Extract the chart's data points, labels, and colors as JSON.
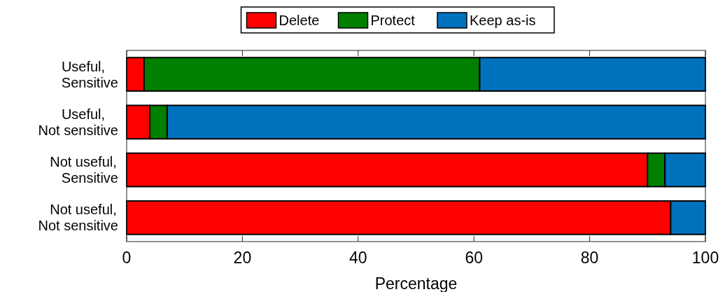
{
  "chart_data": {
    "type": "bar",
    "orientation": "horizontal",
    "stacked": true,
    "xlabel": "Percentage",
    "categories": [
      "Useful,\nSensitive",
      "Useful,\nNot sensitive",
      "Not useful,\nSensitive",
      "Not useful,\nNot sensitive"
    ],
    "series": [
      {
        "name": "Delete",
        "color": "#ff0000",
        "values": [
          3,
          4,
          90,
          94
        ]
      },
      {
        "name": "Protect",
        "color": "#007f00",
        "values": [
          58,
          3,
          3,
          0
        ]
      },
      {
        "name": "Keep as-is",
        "color": "#0072bd",
        "values": [
          39,
          93,
          7,
          6
        ]
      }
    ],
    "xlim": [
      0,
      100
    ],
    "xticks": [
      0,
      20,
      40,
      60,
      80,
      100
    ],
    "legend": "top",
    "grid": false
  }
}
